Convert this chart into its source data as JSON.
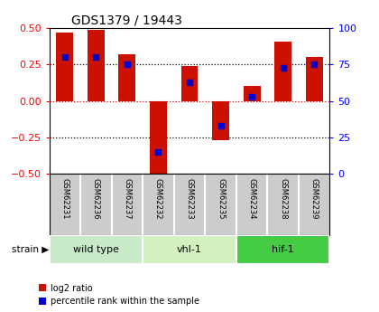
{
  "title": "GDS1379 / 19443",
  "samples": [
    "GSM62231",
    "GSM62236",
    "GSM62237",
    "GSM62232",
    "GSM62233",
    "GSM62235",
    "GSM62234",
    "GSM62238",
    "GSM62239"
  ],
  "log2_ratio": [
    0.47,
    0.49,
    0.32,
    -0.52,
    0.24,
    -0.27,
    0.1,
    0.41,
    0.3
  ],
  "percentile_rank": [
    80,
    80,
    75,
    15,
    63,
    33,
    53,
    73,
    75
  ],
  "ylim": [
    -0.5,
    0.5
  ],
  "yticks_left": [
    -0.5,
    -0.25,
    0.0,
    0.25,
    0.5
  ],
  "yticks_right": [
    0,
    25,
    50,
    75,
    100
  ],
  "bar_color": "#cc1100",
  "dot_color": "#0000cc",
  "groups": [
    {
      "label": "wild type",
      "start": 0,
      "end": 3,
      "color": "#c8eac8"
    },
    {
      "label": "vhl-1",
      "start": 3,
      "end": 6,
      "color": "#d4f0c0"
    },
    {
      "label": "hif-1",
      "start": 6,
      "end": 9,
      "color": "#44cc44"
    }
  ],
  "legend_bar_label": "log2 ratio",
  "legend_dot_label": "percentile rank within the sample",
  "strain_label": "strain",
  "sample_bg": "#cccccc",
  "plot_bg": "#ffffff",
  "bar_width": 0.55
}
